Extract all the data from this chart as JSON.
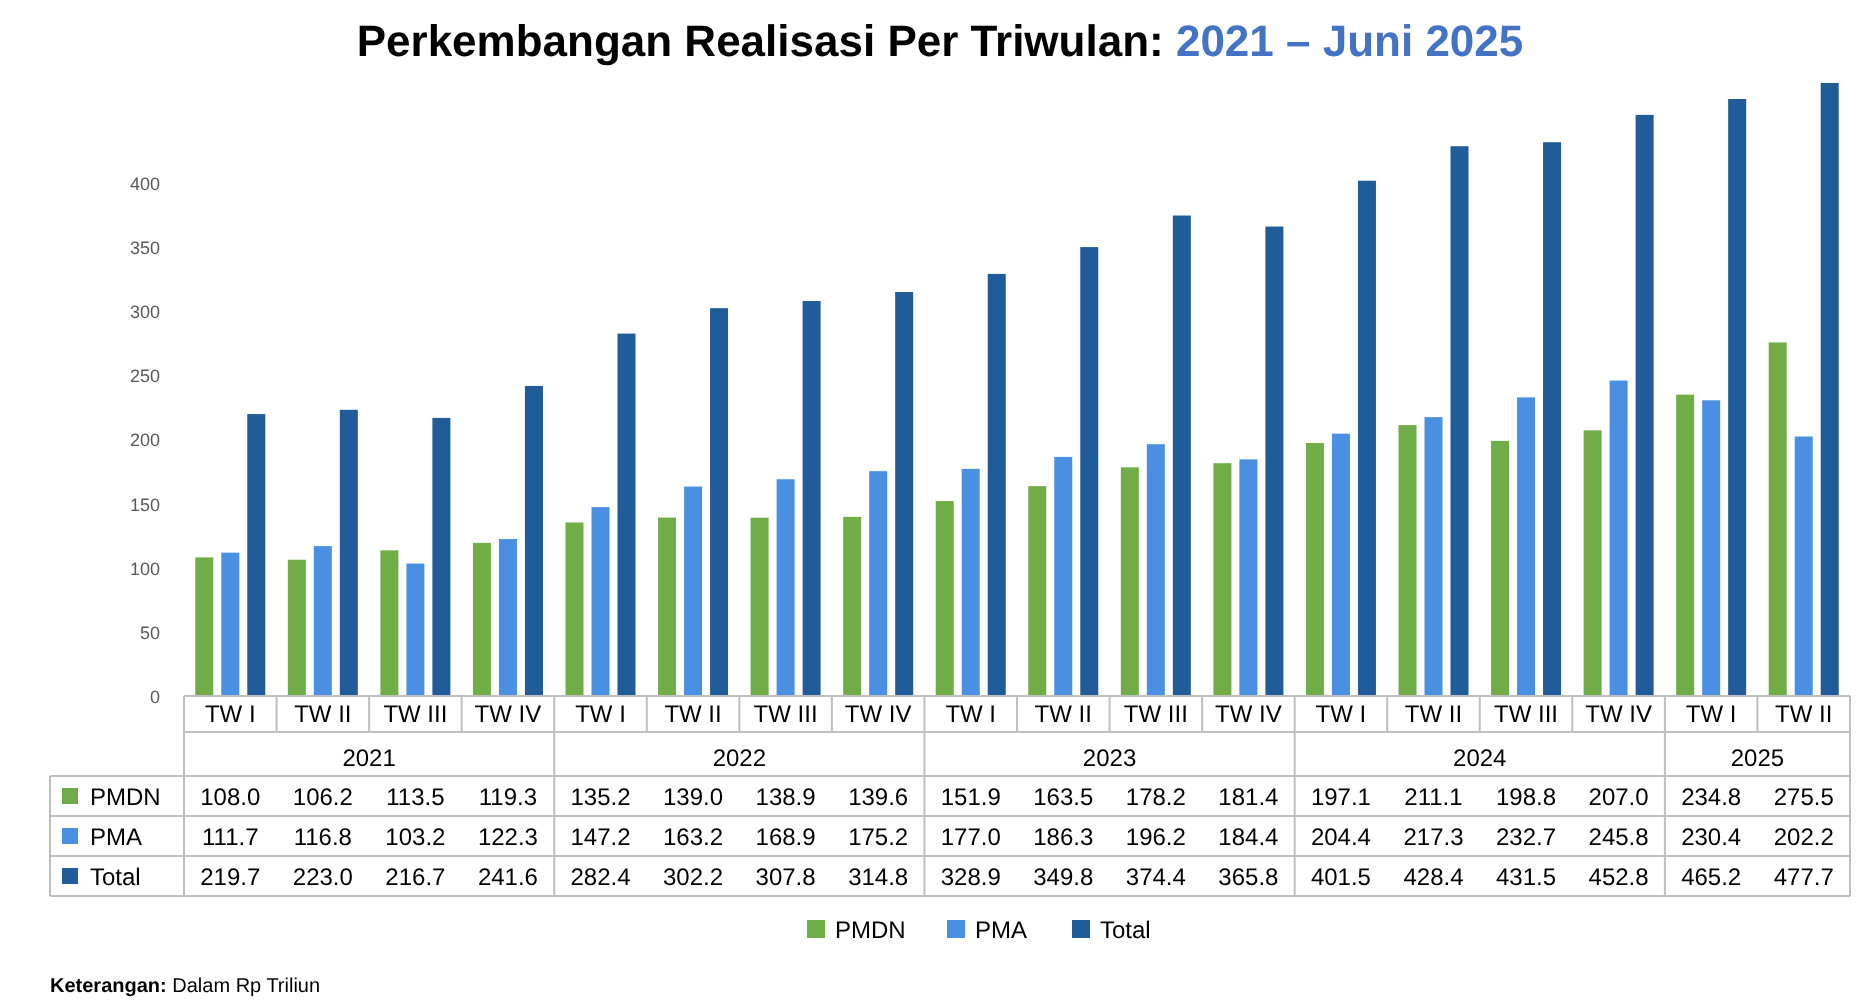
{
  "chart_data": {
    "type": "bar",
    "title": "Perkembangan Realisasi Per Triwulan: 2021 – Juni 2025",
    "categories": [
      "TW I",
      "TW II",
      "TW III",
      "TW IV",
      "TW I",
      "TW II",
      "TW III",
      "TW IV",
      "TW I",
      "TW II",
      "TW III",
      "TW IV",
      "TW I",
      "TW II",
      "TW III",
      "TW IV",
      "TW I",
      "TW II"
    ],
    "series": [
      {
        "name": "PMDN",
        "color": "#70ad47",
        "values": [
          108.0,
          106.2,
          113.5,
          119.3,
          135.2,
          139.0,
          138.9,
          139.6,
          151.9,
          163.5,
          178.2,
          181.4,
          197.1,
          211.1,
          198.8,
          207.0,
          234.8,
          275.5
        ],
        "value_labels": [
          "108.0",
          "106.2",
          "113.5",
          "119.3",
          "135.2",
          "139.0",
          "138.9",
          "139.6",
          "151.9",
          "163.5",
          "178.2",
          "181.4",
          "197.1",
          "211.1",
          "198.8",
          "207.0",
          "234.8",
          "275.5"
        ]
      },
      {
        "name": "PMA",
        "color": "#4a90e2",
        "values": [
          111.7,
          116.8,
          103.2,
          122.3,
          147.2,
          163.2,
          168.9,
          175.2,
          177.0,
          186.3,
          196.2,
          184.4,
          204.4,
          217.3,
          232.7,
          245.8,
          230.4,
          202.2
        ],
        "value_labels": [
          "111.7",
          "116.8",
          "103.2",
          "122.3",
          "147.2",
          "163.2",
          "168.9",
          "175.2",
          "177.0",
          "186.3",
          "196.2",
          "184.4",
          "204.4",
          "217.3",
          "232.7",
          "245.8",
          "230.4",
          "202.2"
        ]
      },
      {
        "name": "Total",
        "color": "#1f5c99",
        "values": [
          219.7,
          223.0,
          216.7,
          241.6,
          282.4,
          302.2,
          307.8,
          314.8,
          328.9,
          349.8,
          374.4,
          365.8,
          401.5,
          428.4,
          431.5,
          452.8,
          465.2,
          477.7
        ],
        "value_labels": [
          "219.7",
          "223.0",
          "216.7",
          "241.6",
          "282.4",
          "302.2",
          "307.8",
          "314.8",
          "328.9",
          "349.8",
          "374.4",
          "365.8",
          "401.5",
          "428.4",
          "431.5",
          "452.8",
          "465.2",
          "477.7"
        ]
      }
    ],
    "ylim": [
      0,
      480
    ],
    "yticks": [
      0,
      50,
      100,
      150,
      200,
      250,
      300,
      350,
      400
    ],
    "legend": "bottom",
    "annotations": [
      "2021",
      "2022",
      "2023",
      "2024",
      "2025",
      "Keterangan: Dalam Rp Triliun"
    ]
  }
}
